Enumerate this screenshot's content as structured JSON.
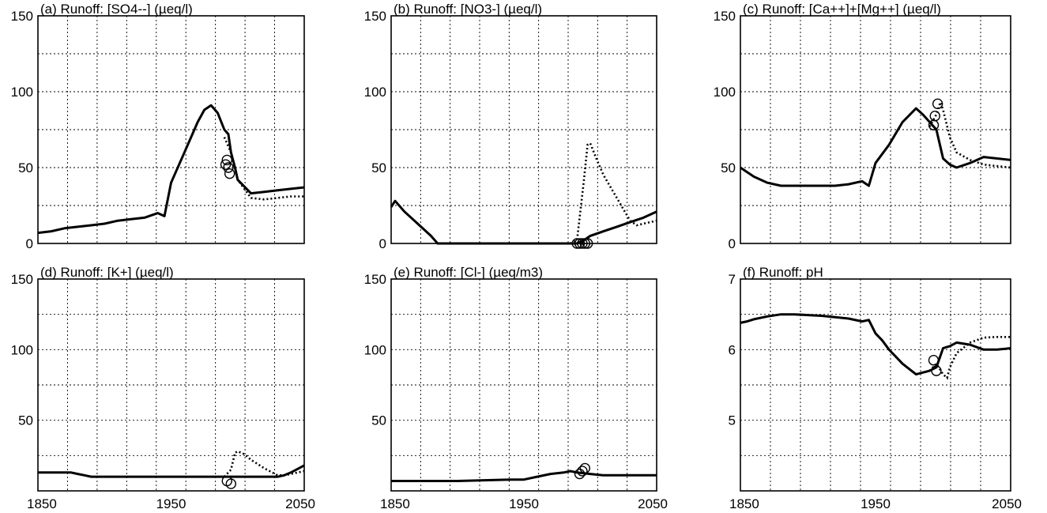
{
  "chart_data": [
    {
      "type": "line",
      "title": "(a)  Runoff: [SO4--] (µeq/l)",
      "xlim": [
        1850,
        2050
      ],
      "ylim": [
        0,
        150
      ],
      "xticks": [
        1850,
        1950,
        2050
      ],
      "yticks": [
        0,
        50,
        100,
        150
      ],
      "xtick_labels": [
        "",
        "",
        ""
      ],
      "ytick_labels": [
        "0",
        "50",
        "100",
        "150"
      ],
      "grid": true,
      "series": [
        {
          "style": "solid",
          "x": [
            1850,
            1860,
            1870,
            1880,
            1890,
            1900,
            1910,
            1920,
            1930,
            1940,
            1945,
            1950,
            1960,
            1970,
            1975,
            1980,
            1985,
            1990,
            1993,
            1995,
            1998,
            2000,
            2010,
            2020,
            2030,
            2040,
            2050
          ],
          "y": [
            7,
            8,
            10,
            11,
            12,
            13,
            15,
            16,
            17,
            20,
            18,
            40,
            60,
            80,
            88,
            91,
            86,
            75,
            72,
            60,
            50,
            42,
            33,
            34,
            35,
            36,
            37
          ]
        },
        {
          "style": "dotted",
          "x": [
            1990,
            1995,
            1998,
            2000,
            2005,
            2010,
            2020,
            2030,
            2040,
            2050
          ],
          "y": [
            70,
            60,
            50,
            42,
            36,
            30,
            29,
            30,
            31,
            31
          ]
        }
      ],
      "observations": {
        "x": [
          1991,
          1992,
          1993,
          1994
        ],
        "y": [
          52,
          55,
          50,
          46
        ]
      }
    },
    {
      "type": "line",
      "title": "(b)  Runoff: [NO3-] (µeq/l)",
      "xlim": [
        1850,
        2050
      ],
      "ylim": [
        0,
        150
      ],
      "xticks": [
        1850,
        1950,
        2050
      ],
      "yticks": [
        0,
        50,
        100,
        150
      ],
      "xtick_labels": [
        "",
        "",
        ""
      ],
      "ytick_labels": [
        "0",
        "50",
        "100",
        "150"
      ],
      "grid": true,
      "series": [
        {
          "style": "solid",
          "x": [
            1850,
            1853,
            1860,
            1870,
            1880,
            1885,
            1890,
            1900,
            1950,
            1985,
            1990,
            1995,
            2000,
            2010,
            2020,
            2030,
            2040,
            2050
          ],
          "y": [
            24,
            28,
            21,
            13,
            5,
            0,
            0,
            0,
            0,
            0,
            0,
            2,
            5,
            8,
            11,
            14,
            17,
            21
          ]
        },
        {
          "style": "dotted",
          "x": [
            1985,
            1990,
            1995,
            1998,
            2000,
            2005,
            2010,
            2020,
            2030,
            2035,
            2040,
            2050
          ],
          "y": [
            0,
            2,
            40,
            65,
            66,
            55,
            45,
            30,
            15,
            12,
            13,
            15
          ]
        }
      ],
      "observations": {
        "x": [
          1990,
          1992,
          1994,
          1996,
          1998
        ],
        "y": [
          0,
          0,
          0,
          0,
          0
        ]
      }
    },
    {
      "type": "line",
      "title": "(c)  Runoff: [Ca++]+[Mg++] (µeq/l)",
      "xlim": [
        1850,
        2050
      ],
      "ylim": [
        0,
        150
      ],
      "xticks": [
        1850,
        1950,
        2050
      ],
      "yticks": [
        0,
        50,
        100,
        150
      ],
      "xtick_labels": [
        "",
        "",
        ""
      ],
      "ytick_labels": [
        "0",
        "50",
        "100",
        "150"
      ],
      "grid": true,
      "series": [
        {
          "style": "solid",
          "x": [
            1850,
            1855,
            1860,
            1870,
            1880,
            1890,
            1900,
            1910,
            1920,
            1930,
            1940,
            1945,
            1950,
            1960,
            1970,
            1980,
            1985,
            1990,
            1995,
            2000,
            2005,
            2010,
            2020,
            2030,
            2040,
            2050
          ],
          "y": [
            50,
            47,
            44,
            40,
            38,
            38,
            38,
            38,
            38,
            39,
            41,
            38,
            53,
            65,
            80,
            89,
            85,
            80,
            75,
            56,
            52,
            50,
            53,
            57,
            56,
            55
          ]
        },
        {
          "style": "dotted",
          "x": [
            1990,
            1995,
            1998,
            2000,
            2005,
            2010,
            2020,
            2030,
            2040,
            2050
          ],
          "y": [
            77,
            85,
            93,
            88,
            70,
            60,
            55,
            52,
            51,
            50
          ]
        }
      ],
      "observations": {
        "x": [
          1993,
          1994,
          1996
        ],
        "y": [
          78,
          84,
          92
        ]
      }
    },
    {
      "type": "line",
      "title": "(d)  Runoff: [K+] (µeq/l)",
      "xlim": [
        1850,
        2050
      ],
      "ylim": [
        0,
        150
      ],
      "xticks": [
        1850,
        1950,
        2050
      ],
      "yticks": [
        50,
        100,
        150
      ],
      "xtick_labels": [
        "1850",
        "1950",
        "2050"
      ],
      "ytick_labels": [
        "50",
        "100",
        "150"
      ],
      "grid": true,
      "series": [
        {
          "style": "solid",
          "x": [
            1850,
            1860,
            1870,
            1875,
            1880,
            1885,
            1890,
            1950,
            1990,
            2000,
            2010,
            2020,
            2030,
            2035,
            2040,
            2050
          ],
          "y": [
            13,
            13,
            13,
            13,
            12,
            11,
            10,
            10,
            10,
            10,
            10,
            10,
            10,
            11,
            13,
            18
          ]
        },
        {
          "style": "dotted",
          "x": [
            1990,
            1995,
            1998,
            2000,
            2005,
            2010,
            2020,
            2030,
            2035,
            2040,
            2050
          ],
          "y": [
            10,
            15,
            27,
            28,
            26,
            22,
            16,
            11,
            11,
            12,
            14
          ]
        }
      ],
      "observations": {
        "x": [
          1992,
          1995
        ],
        "y": [
          7,
          5
        ]
      }
    },
    {
      "type": "line",
      "title": "(e)  Runoff: [Cl-] (µeq/m3)",
      "xlim": [
        1850,
        2050
      ],
      "ylim": [
        0,
        150
      ],
      "xticks": [
        1850,
        1950,
        2050
      ],
      "yticks": [
        50,
        100,
        150
      ],
      "xtick_labels": [
        "1850",
        "1950",
        "2050"
      ],
      "ytick_labels": [
        "50",
        "100",
        "150"
      ],
      "grid": true,
      "series": [
        {
          "style": "solid",
          "x": [
            1850,
            1900,
            1940,
            1950,
            1960,
            1970,
            1980,
            1985,
            1990,
            2000,
            2010,
            2050
          ],
          "y": [
            7,
            7,
            8,
            8,
            10,
            12,
            13,
            14,
            13,
            12,
            11,
            11
          ]
        }
      ],
      "observations": {
        "x": [
          1992,
          1994,
          1996
        ],
        "y": [
          12,
          14,
          16
        ]
      }
    },
    {
      "type": "line",
      "title": "(f)  Runoff: pH",
      "xlim": [
        1850,
        2050
      ],
      "ylim": [
        4,
        7
      ],
      "xticks": [
        1850,
        1950,
        2050
      ],
      "yticks": [
        5,
        6,
        7
      ],
      "xtick_labels": [
        "1850",
        "1950",
        "2050"
      ],
      "ytick_labels": [
        "5",
        "6",
        "7"
      ],
      "grid": true,
      "series": [
        {
          "style": "solid",
          "x": [
            1850,
            1855,
            1860,
            1870,
            1880,
            1890,
            1900,
            1910,
            1920,
            1930,
            1940,
            1945,
            1950,
            1955,
            1960,
            1970,
            1980,
            1990,
            1995,
            2000,
            2005,
            2010,
            2020,
            2030,
            2040,
            2050
          ],
          "y": [
            6.38,
            6.4,
            6.43,
            6.47,
            6.5,
            6.5,
            6.49,
            6.48,
            6.46,
            6.44,
            6.4,
            6.42,
            6.23,
            6.13,
            6.0,
            5.8,
            5.65,
            5.7,
            5.75,
            6.02,
            6.05,
            6.1,
            6.07,
            6.0,
            6.0,
            6.02
          ]
        },
        {
          "style": "dotted",
          "x": [
            1990,
            1995,
            2000,
            2003,
            2005,
            2010,
            2020,
            2030,
            2040,
            2050
          ],
          "y": [
            5.7,
            5.8,
            5.65,
            5.6,
            5.75,
            5.95,
            6.1,
            6.17,
            6.18,
            6.18
          ]
        }
      ],
      "observations": {
        "x": [
          1993,
          1995
        ],
        "y": [
          5.85,
          5.7
        ]
      }
    }
  ]
}
